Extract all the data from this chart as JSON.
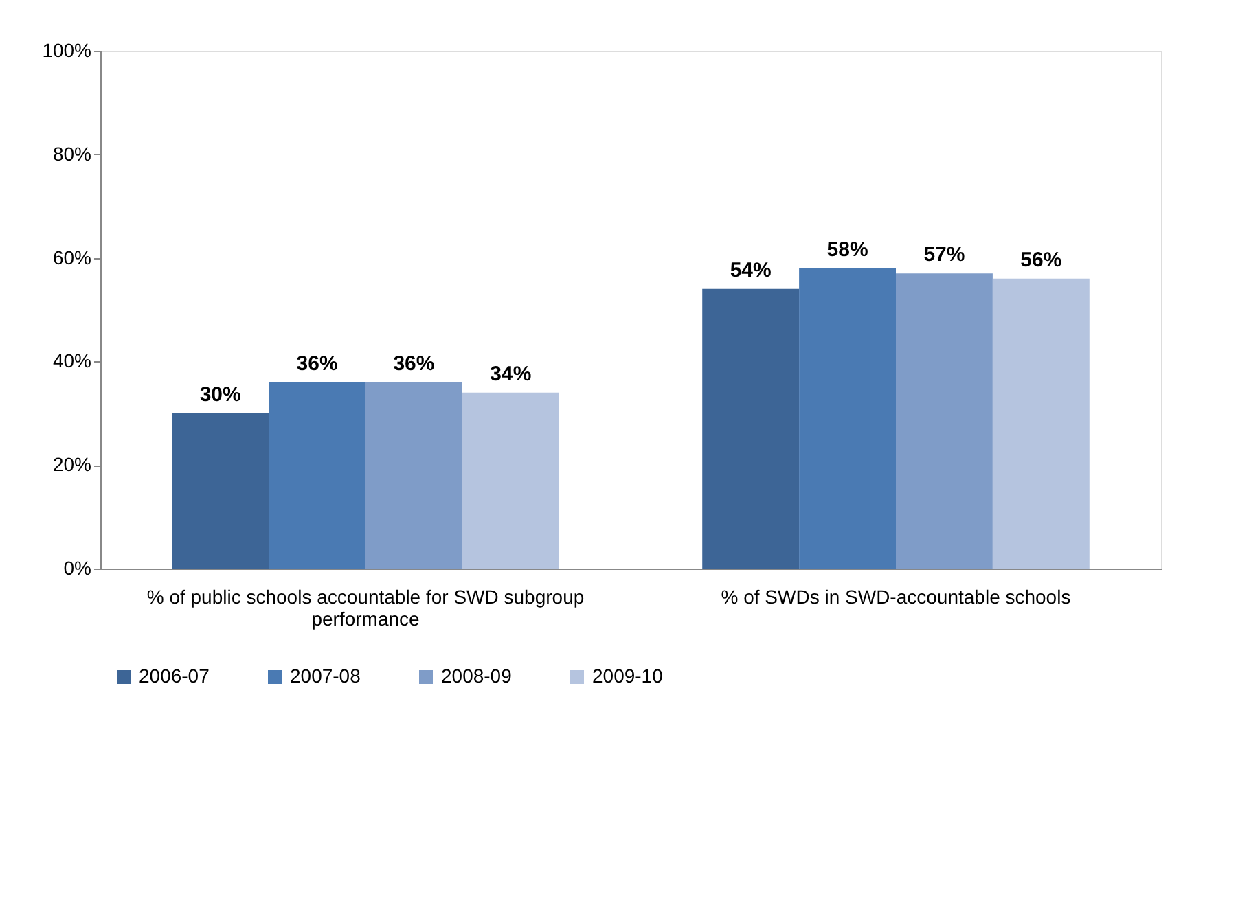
{
  "chart_data": {
    "type": "bar",
    "categories": [
      "% of public schools accountable for SWD subgroup performance",
      "% of SWDs in SWD-accountable schools"
    ],
    "series": [
      {
        "name": "2006-07",
        "color": "#3d6596",
        "values": [
          30,
          54
        ],
        "value_labels": [
          "30%",
          "54%"
        ]
      },
      {
        "name": "2007-08",
        "color": "#4a7ab3",
        "values": [
          36,
          58
        ],
        "value_labels": [
          "36%",
          "58%"
        ]
      },
      {
        "name": "2008-09",
        "color": "#7f9cc8",
        "values": [
          36,
          57
        ],
        "value_labels": [
          "36%",
          "57%"
        ]
      },
      {
        "name": "2009-10",
        "color": "#b5c4df",
        "values": [
          34,
          56
        ],
        "value_labels": [
          "34%",
          "56%"
        ]
      }
    ],
    "ylim": [
      0,
      100
    ],
    "yticks": [
      {
        "value": 0,
        "label": "0%"
      },
      {
        "value": 20,
        "label": "20%"
      },
      {
        "value": 40,
        "label": "40%"
      },
      {
        "value": 60,
        "label": "60%"
      },
      {
        "value": 80,
        "label": "80%"
      },
      {
        "value": 100,
        "label": "100%"
      }
    ],
    "legend": "bottom",
    "grid": false
  }
}
